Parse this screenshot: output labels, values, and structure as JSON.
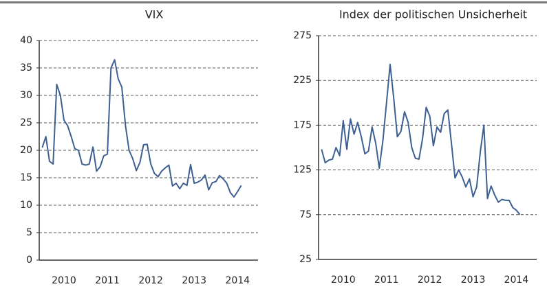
{
  "chart_data": [
    {
      "type": "line",
      "title": "VIX",
      "x": [
        2010,
        2010.083,
        2010.167,
        2010.25,
        2010.333,
        2010.417,
        2010.5,
        2010.583,
        2010.667,
        2010.75,
        2010.833,
        2010.917,
        2011,
        2011.083,
        2011.167,
        2011.25,
        2011.333,
        2011.417,
        2011.5,
        2011.583,
        2011.667,
        2011.75,
        2011.833,
        2011.917,
        2012,
        2012.083,
        2012.167,
        2012.25,
        2012.333,
        2012.417,
        2012.5,
        2012.583,
        2012.667,
        2012.75,
        2012.833,
        2012.917,
        2013,
        2013.083,
        2013.167,
        2013.25,
        2013.333,
        2013.417,
        2013.5,
        2013.583,
        2013.667,
        2013.75,
        2013.833,
        2013.917,
        2014,
        2014.083,
        2014.167,
        2014.25,
        2014.333,
        2014.417,
        2014.5,
        2014.583
      ],
      "series": [
        {
          "color": "#3d5f92",
          "values": [
            20.5,
            22.5,
            18,
            17.5,
            32,
            30,
            25.5,
            24.5,
            22.5,
            20.3,
            20,
            17.5,
            17.3,
            17.5,
            20.6,
            16.2,
            17,
            19,
            19.3,
            35,
            36.5,
            33,
            31.5,
            24.5,
            20,
            18.5,
            16.3,
            17.8,
            21,
            21.1,
            17.5,
            15.8,
            15.2,
            16.2,
            16.8,
            17.3,
            13.5,
            14,
            13,
            14,
            13.6,
            17.4,
            14,
            14.2,
            14.6,
            15.5,
            12.8,
            14.1,
            14.3,
            15.4,
            14.8,
            14,
            12.3,
            11.5,
            12.5,
            13.6
          ]
        }
      ],
      "xlim": [
        2009.93,
        2014.97
      ],
      "xticks": [
        {
          "value": 2010.5,
          "label": "2010"
        },
        {
          "value": 2011.5,
          "label": "2011"
        },
        {
          "value": 2012.5,
          "label": "2012"
        },
        {
          "value": 2013.5,
          "label": "2013"
        },
        {
          "value": 2014.5,
          "label": "2014"
        }
      ],
      "ylim": [
        0,
        40
      ],
      "yticks": [
        0,
        5,
        10,
        15,
        20,
        25,
        30,
        35,
        40
      ],
      "grid": true
    },
    {
      "type": "line",
      "title": "Index der politischen Unsicherheit",
      "x": [
        2010,
        2010.083,
        2010.167,
        2010.25,
        2010.333,
        2010.417,
        2010.5,
        2010.583,
        2010.667,
        2010.75,
        2010.833,
        2010.917,
        2011,
        2011.083,
        2011.167,
        2011.25,
        2011.333,
        2011.417,
        2011.5,
        2011.583,
        2011.667,
        2011.75,
        2011.833,
        2011.917,
        2012,
        2012.083,
        2012.167,
        2012.25,
        2012.333,
        2012.417,
        2012.5,
        2012.583,
        2012.667,
        2012.75,
        2012.833,
        2012.917,
        2013,
        2013.083,
        2013.167,
        2013.25,
        2013.333,
        2013.417,
        2013.5,
        2013.583,
        2013.667,
        2013.75,
        2013.833,
        2013.917,
        2014,
        2014.083,
        2014.167,
        2014.25,
        2014.333,
        2014.417,
        2014.5,
        2014.583
      ],
      "series": [
        {
          "color": "#3d5f92",
          "values": [
            148,
            133,
            136,
            137,
            150,
            141,
            180,
            148,
            182,
            165,
            178,
            162,
            143,
            146,
            173,
            155,
            127,
            158,
            200,
            243,
            205,
            162,
            168,
            190,
            178,
            150,
            138,
            137,
            160,
            195,
            185,
            152,
            173,
            167,
            188,
            192,
            155,
            116,
            125,
            117,
            106,
            115,
            95,
            106,
            145,
            175,
            93,
            107,
            97,
            89,
            92,
            91,
            91,
            83,
            80,
            75
          ]
        }
      ],
      "xlim": [
        2009.93,
        2014.97
      ],
      "xticks": [
        {
          "value": 2010.5,
          "label": "2010"
        },
        {
          "value": 2011.5,
          "label": "2011"
        },
        {
          "value": 2012.5,
          "label": "2012"
        },
        {
          "value": 2013.5,
          "label": "2013"
        },
        {
          "value": 2014.5,
          "label": "2014"
        }
      ],
      "ylim": [
        25,
        275
      ],
      "yticks": [
        25,
        75,
        125,
        175,
        225,
        275
      ],
      "grid": true
    }
  ]
}
